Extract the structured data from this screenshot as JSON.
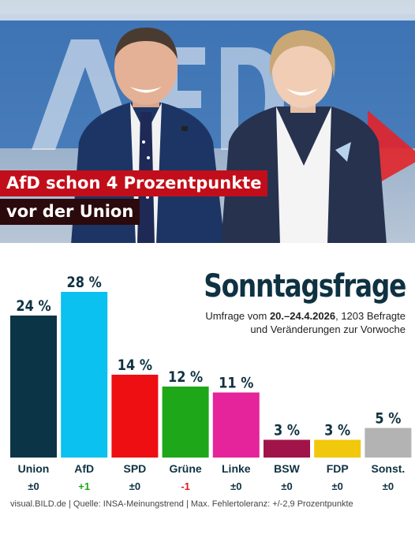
{
  "headline": {
    "line1": "AfD schon 4 Prozentpunkte",
    "line2": "vor der Union"
  },
  "chart_data": {
    "type": "bar",
    "title": "Sonntagsfrage",
    "subtitle_prefix": "Umfrage vom ",
    "subtitle_dates": "20.–24.4.2026",
    "subtitle_suffix": ", 1203 Befragte",
    "subtitle_line2": "und Veränderungen zur Vorwoche",
    "categories": [
      "Union",
      "AfD",
      "SPD",
      "Grüne",
      "Linke",
      "BSW",
      "FDP",
      "Sonst."
    ],
    "values": [
      24,
      28,
      14,
      12,
      11,
      3,
      3,
      5
    ],
    "value_labels": [
      "24 %",
      "28 %",
      "14 %",
      "12 %",
      "11 %",
      "3 %",
      "3 %",
      "5 %"
    ],
    "changes": [
      "±0",
      "+1",
      "±0",
      "-1",
      "±0",
      "±0",
      "±0",
      "±0"
    ],
    "colors": [
      "#0b3546",
      "#0ac1ef",
      "#ee0f13",
      "#1fa71a",
      "#e5239a",
      "#a0144a",
      "#f2c80c",
      "#b3b3b3"
    ],
    "change_colors": [
      "#0f3242",
      "#1fa71a",
      "#0f3242",
      "#e01a1a",
      "#0f3242",
      "#0f3242",
      "#0f3242",
      "#0f3242"
    ],
    "ylim": [
      0,
      28
    ]
  },
  "source": "visual.BILD.de | Quelle: INSA-Meinungstrend | Max. Fehlertoleranz: +/-2,9 Prozentpunkte"
}
